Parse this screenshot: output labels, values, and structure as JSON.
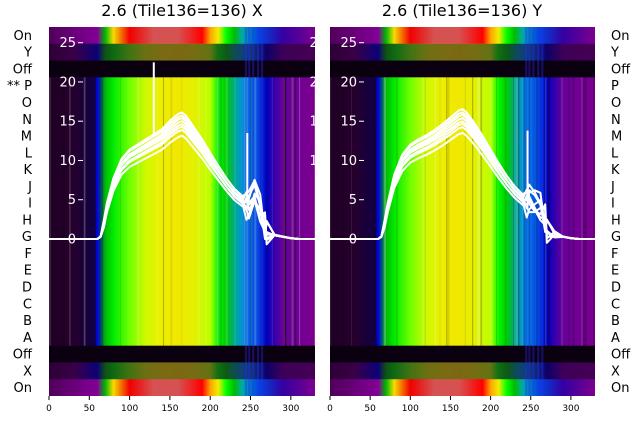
{
  "chart_data": {
    "type": "heatmap",
    "panels": [
      {
        "title": "2.6 (Tile136=136) X",
        "row_labels": [
          "On",
          "Y",
          "Off",
          "** P",
          "O",
          "N",
          "M",
          "L",
          "K",
          "J",
          "I",
          "H",
          "G",
          "F",
          "E",
          "D",
          "C",
          "B",
          "A",
          "Off",
          "X",
          "On"
        ],
        "overlay_series": {
          "trace_count": 8,
          "base_profile": {
            "x": [
              0,
              60,
              64,
              68,
              72,
              80,
              90,
              100,
              110,
              120,
              130,
              140,
              150,
              160,
              165,
              170,
              180,
              190,
              200,
              210,
              220,
              230,
              240,
              245,
              248,
              255,
              262,
              268,
              270,
              280,
              290,
              300,
              310,
              320,
              330
            ],
            "y": [
              0,
              0,
              0.3,
              2,
              4.2,
              7.2,
              9.5,
              10.6,
              11.2,
              11.8,
              12.4,
              13,
              14,
              14.8,
              15,
              14.6,
              13.2,
              11.8,
              10.2,
              8.7,
              7.2,
              5.9,
              5,
              4.5,
              4.2,
              6,
              4,
              1.5,
              0.8,
              0.5,
              0.3,
              0.1,
              0,
              0,
              0
            ]
          },
          "spikes": [
            {
              "x": 130,
              "y": 22.5
            },
            {
              "x": 246,
              "y": 13.5
            }
          ]
        }
      },
      {
        "title": "2.6 (Tile136=136) Y",
        "row_labels": [
          "On",
          "Y",
          "Off",
          "P",
          "O",
          "N",
          "M",
          "L",
          "K",
          "J",
          "I",
          "H",
          "G",
          "F",
          "E",
          "D",
          "C",
          "B",
          "A",
          "Off",
          "X",
          "On"
        ],
        "overlay_series": {
          "trace_count": 8,
          "base_profile": {
            "x": [
              0,
              60,
              64,
              68,
              72,
              80,
              90,
              100,
              110,
              120,
              130,
              140,
              150,
              160,
              165,
              170,
              180,
              190,
              200,
              210,
              220,
              230,
              240,
              245,
              248,
              255,
              262,
              268,
              270,
              280,
              290,
              300,
              310,
              320,
              330
            ],
            "y": [
              0,
              0,
              0.3,
              2,
              4.2,
              7.6,
              10,
              11.2,
              11.8,
              12.3,
              12.9,
              13.6,
              14.4,
              15.2,
              15.4,
              15,
              13.7,
              12.2,
              10.6,
              9,
              7.5,
              6.2,
              5.2,
              4.8,
              5,
              4.6,
              4.2,
              2.5,
              1,
              0.6,
              0.3,
              0.1,
              0,
              0,
              0
            ]
          },
          "spikes": [
            {
              "x": 246,
              "y": 13.8
            },
            {
              "x": 268,
              "y": 0.8
            }
          ]
        }
      }
    ],
    "x_axis": {
      "range": [
        0,
        330
      ],
      "ticks": [
        0,
        50,
        100,
        150,
        200,
        250,
        300
      ],
      "tick_labels": [
        "0",
        "50",
        "100",
        "150",
        "200",
        "250",
        "300"
      ]
    },
    "y_axis": {
      "range": [
        -20,
        27
      ],
      "ticks": [
        0,
        5,
        10,
        15,
        20,
        25
      ],
      "tick_labels": [
        "0",
        "5",
        "10",
        "15",
        "20",
        "25"
      ]
    },
    "heatmap_colormap": "nipy_spectral",
    "heatmap_profile": {
      "x": [
        0,
        30,
        60,
        70,
        80,
        100,
        120,
        140,
        160,
        180,
        200,
        210,
        220,
        230,
        240,
        250,
        260,
        270,
        290,
        330
      ],
      "intensity": [
        0.05,
        0.08,
        0.25,
        0.55,
        0.62,
        0.68,
        0.72,
        0.75,
        0.76,
        0.74,
        0.7,
        0.64,
        0.57,
        0.45,
        0.34,
        0.3,
        0.28,
        0.22,
        0.16,
        0.12
      ]
    },
    "on_band_profile": {
      "x": [
        0,
        60,
        70,
        80,
        100,
        130,
        160,
        190,
        200,
        210,
        220,
        230,
        240,
        260,
        290,
        330
      ],
      "intensity": [
        0.06,
        0.15,
        0.55,
        0.78,
        0.92,
        0.97,
        0.97,
        0.9,
        0.84,
        0.75,
        0.65,
        0.55,
        0.4,
        0.28,
        0.18,
        0.12
      ]
    },
    "grid": false,
    "legend": "none"
  }
}
